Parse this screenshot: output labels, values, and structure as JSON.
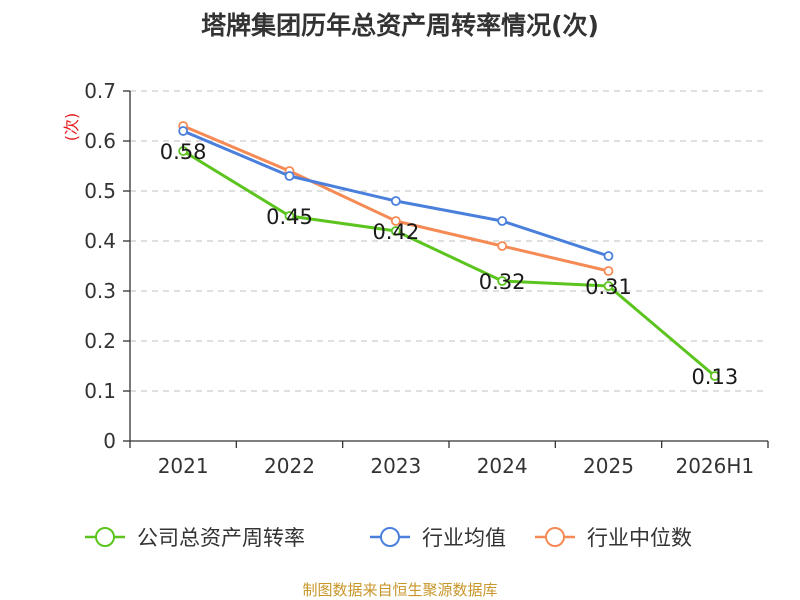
{
  "chart_data": {
    "type": "line",
    "title": "塔牌集团历年总资产周转率情况(次)",
    "ylabel": "(次)",
    "xlabel": "",
    "categories": [
      "2021",
      "2022",
      "2023",
      "2024",
      "2025",
      "2026H1"
    ],
    "ylim": [
      0,
      0.7
    ],
    "yticks": [
      "0",
      "0.1",
      "0.2",
      "0.3",
      "0.4",
      "0.5",
      "0.6",
      "0.7"
    ],
    "grid": true,
    "legend": "bottom",
    "series": [
      {
        "name": "公司总资产周转率",
        "color": "#5cc41f",
        "values": [
          0.58,
          0.45,
          0.42,
          0.32,
          0.31,
          0.13
        ],
        "labels": [
          "0.58",
          "0.45",
          "0.42",
          "0.32",
          "0.31",
          "0.13"
        ]
      },
      {
        "name": "行业均值",
        "color": "#4a7fdc",
        "values": [
          0.62,
          0.53,
          0.48,
          0.44,
          0.37,
          null
        ]
      },
      {
        "name": "行业中位数",
        "color": "#f58a55",
        "values": [
          0.63,
          0.54,
          0.44,
          0.39,
          0.34,
          null
        ]
      }
    ]
  },
  "footer": {
    "source": "制图数据来自恒生聚源数据库"
  }
}
